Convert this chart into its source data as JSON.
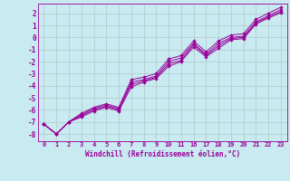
{
  "xlabel": "Windchill (Refroidissement éolien,°C)",
  "background_color": "#c8eaf0",
  "grid_color": "#b0c8c8",
  "line_color": "#990099",
  "tick_labels": [
    "0",
    "1",
    "2",
    "3",
    "4",
    "5",
    "6",
    "7",
    "8",
    "9",
    "10",
    "11",
    "16",
    "17",
    "18",
    "19",
    "20",
    "21",
    "22",
    "23"
  ],
  "ylim": [
    -8.6,
    2.8
  ],
  "yticks": [
    -8,
    -7,
    -6,
    -5,
    -4,
    -3,
    -2,
    -1,
    0,
    1,
    2
  ],
  "lines": [
    {
      "y": [
        -7.2,
        -8.0,
        -7.0,
        -6.3,
        -5.8,
        -5.5,
        -5.8,
        -3.5,
        -3.3,
        -3.0,
        -1.8,
        -1.5,
        -0.3,
        -1.2,
        -0.3,
        0.2,
        0.3,
        1.5,
        2.0,
        2.5
      ]
    },
    {
      "y": [
        -7.2,
        -8.0,
        -7.0,
        -6.4,
        -5.9,
        -5.6,
        -5.9,
        -3.7,
        -3.5,
        -3.2,
        -2.0,
        -1.7,
        -0.5,
        -1.4,
        -0.5,
        0.0,
        0.1,
        1.3,
        1.8,
        2.3
      ]
    },
    {
      "y": [
        -7.2,
        -8.0,
        -7.0,
        -6.5,
        -6.0,
        -5.7,
        -6.0,
        -3.9,
        -3.6,
        -3.3,
        -2.2,
        -1.9,
        -0.6,
        -1.5,
        -0.7,
        -0.1,
        0.0,
        1.2,
        1.7,
        2.15
      ]
    },
    {
      "y": [
        -7.2,
        -8.0,
        -7.0,
        -6.6,
        -6.1,
        -5.8,
        -6.1,
        -4.1,
        -3.7,
        -3.4,
        -2.4,
        -2.0,
        -0.8,
        -1.6,
        -0.9,
        -0.2,
        -0.1,
        1.1,
        1.6,
        2.05
      ]
    }
  ]
}
